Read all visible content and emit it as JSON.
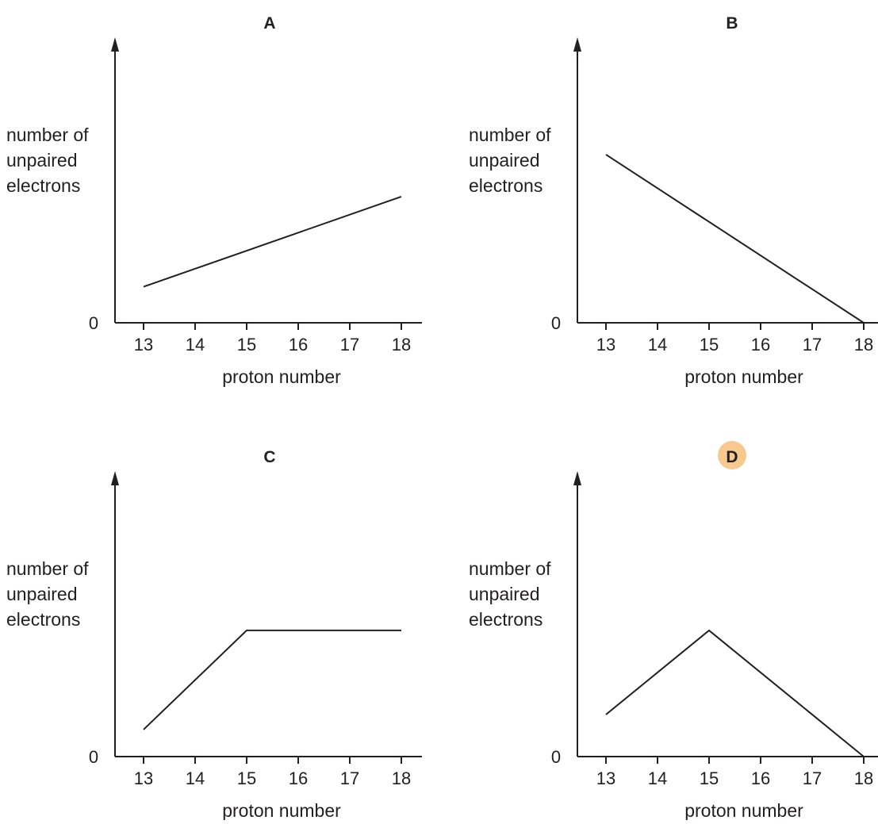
{
  "highlight_color": "#f8c98f",
  "axis_color": "#231f20",
  "chart_data": [
    {
      "type": "line",
      "title": "A",
      "highlighted": false,
      "ylabel_lines": [
        "number of",
        "unpaired",
        "electrons"
      ],
      "xlabel": "proton number",
      "x_ticks": [
        13,
        14,
        15,
        16,
        17,
        18
      ],
      "y_ticks": [
        "0"
      ],
      "ylim": [
        0,
        4
      ],
      "x": [
        13,
        18
      ],
      "y": [
        0.6,
        2.1
      ]
    },
    {
      "type": "line",
      "title": "B",
      "highlighted": false,
      "ylabel_lines": [
        "number of",
        "unpaired",
        "electrons"
      ],
      "xlabel": "proton number",
      "x_ticks": [
        13,
        14,
        15,
        16,
        17,
        18
      ],
      "y_ticks": [
        "0"
      ],
      "ylim": [
        0,
        4
      ],
      "x": [
        13,
        18
      ],
      "y": [
        2.8,
        0
      ]
    },
    {
      "type": "line",
      "title": "C",
      "highlighted": false,
      "ylabel_lines": [
        "number of",
        "unpaired",
        "electrons"
      ],
      "xlabel": "proton number",
      "x_ticks": [
        13,
        14,
        15,
        16,
        17,
        18
      ],
      "y_ticks": [
        "0"
      ],
      "ylim": [
        0,
        4
      ],
      "x": [
        13,
        15,
        18
      ],
      "y": [
        0.45,
        2.1,
        2.1
      ]
    },
    {
      "type": "line",
      "title": "D",
      "highlighted": true,
      "ylabel_lines": [
        "number of",
        "unpaired",
        "electrons"
      ],
      "xlabel": "proton number",
      "x_ticks": [
        13,
        14,
        15,
        16,
        17,
        18
      ],
      "y_ticks": [
        "0"
      ],
      "ylim": [
        0,
        4
      ],
      "x": [
        13,
        15,
        18
      ],
      "y": [
        0.7,
        2.1,
        0
      ]
    }
  ]
}
